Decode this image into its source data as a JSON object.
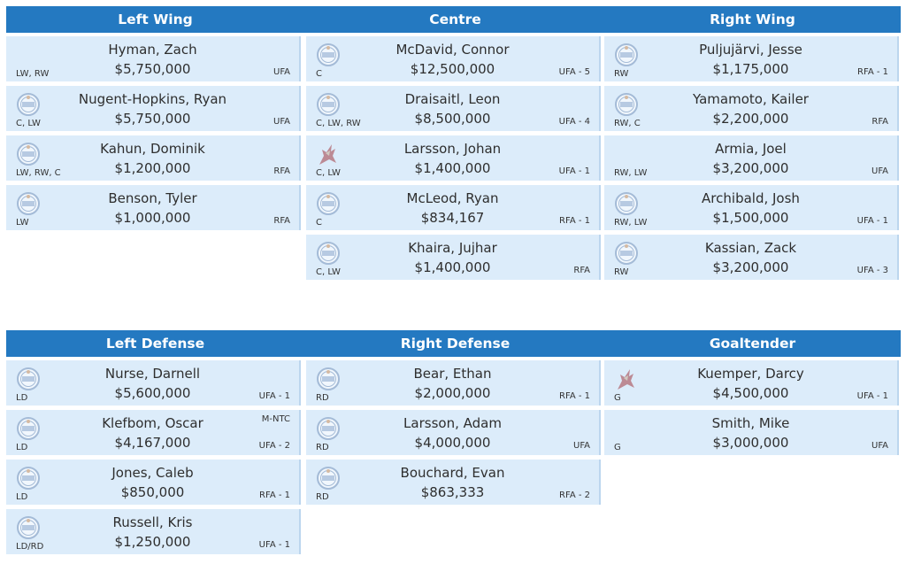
{
  "forwards": {
    "headers": [
      "Left Wing",
      "Centre",
      "Right Wing"
    ],
    "columns": [
      [
        {
          "name": "Hyman, Zach",
          "salary": "$5,750,000",
          "pos": "LW, RW",
          "status": "UFA",
          "logo": ""
        },
        {
          "name": "Nugent-Hopkins, Ryan",
          "salary": "$5,750,000",
          "pos": "C, LW",
          "status": "UFA",
          "logo": "oilers-logo-icon"
        },
        {
          "name": "Kahun, Dominik",
          "salary": "$1,200,000",
          "pos": "LW, RW, C",
          "status": "RFA",
          "logo": "oilers-logo-icon"
        },
        {
          "name": "Benson, Tyler",
          "salary": "$1,000,000",
          "pos": "LW",
          "status": "RFA",
          "logo": "oilers-logo-icon"
        }
      ],
      [
        {
          "name": "McDavid, Connor",
          "salary": "$12,500,000",
          "pos": "C",
          "status": "UFA - 5",
          "logo": "oilers-logo-icon"
        },
        {
          "name": "Draisaitl, Leon",
          "salary": "$8,500,000",
          "pos": "C, LW, RW",
          "status": "UFA - 4",
          "logo": "oilers-logo-icon"
        },
        {
          "name": "Larsson, Johan",
          "salary": "$1,400,000",
          "pos": "C, LW",
          "status": "UFA - 1",
          "logo": "coyotes-logo-icon"
        },
        {
          "name": "McLeod, Ryan",
          "salary": "$834,167",
          "pos": "C",
          "status": "RFA - 1",
          "logo": "oilers-logo-icon"
        },
        {
          "name": "Khaira, Jujhar",
          "salary": "$1,400,000",
          "pos": "C, LW",
          "status": "RFA",
          "logo": "oilers-logo-icon"
        }
      ],
      [
        {
          "name": "Puljujärvi, Jesse",
          "salary": "$1,175,000",
          "pos": "RW",
          "status": "RFA - 1",
          "logo": "oilers-logo-icon"
        },
        {
          "name": "Yamamoto, Kailer",
          "salary": "$2,200,000",
          "pos": "RW, C",
          "status": "RFA",
          "logo": "oilers-logo-icon"
        },
        {
          "name": "Armia, Joel",
          "salary": "$3,200,000",
          "pos": "RW, LW",
          "status": "UFA",
          "logo": ""
        },
        {
          "name": "Archibald, Josh",
          "salary": "$1,500,000",
          "pos": "RW, LW",
          "status": "UFA - 1",
          "logo": "oilers-logo-icon"
        },
        {
          "name": "Kassian, Zack",
          "salary": "$3,200,000",
          "pos": "RW",
          "status": "UFA - 3",
          "logo": "oilers-logo-icon"
        }
      ]
    ]
  },
  "defense": {
    "headers": [
      "Left Defense",
      "Right Defense",
      "Goaltender"
    ],
    "columns": [
      [
        {
          "name": "Nurse, Darnell",
          "salary": "$5,600,000",
          "pos": "LD",
          "status": "UFA - 1",
          "logo": "oilers-logo-icon"
        },
        {
          "name": "Klefbom, Oscar",
          "salary": "$4,167,000",
          "pos": "LD",
          "status": "UFA - 2",
          "note": "M-NTC",
          "logo": "oilers-logo-icon"
        },
        {
          "name": "Jones, Caleb",
          "salary": "$850,000",
          "pos": "LD",
          "status": "RFA - 1",
          "logo": "oilers-logo-icon"
        },
        {
          "name": "Russell, Kris",
          "salary": "$1,250,000",
          "pos": "LD/RD",
          "status": "UFA - 1",
          "logo": "oilers-logo-icon"
        }
      ],
      [
        {
          "name": "Bear, Ethan",
          "salary": "$2,000,000",
          "pos": "RD",
          "status": "RFA - 1",
          "logo": "oilers-logo-icon"
        },
        {
          "name": "Larsson, Adam",
          "salary": "$4,000,000",
          "pos": "RD",
          "status": "UFA",
          "logo": "oilers-logo-icon"
        },
        {
          "name": "Bouchard, Evan",
          "salary": "$863,333",
          "pos": "RD",
          "status": "RFA - 2",
          "logo": "oilers-logo-icon"
        }
      ],
      [
        {
          "name": "Kuemper, Darcy",
          "salary": "$4,500,000",
          "pos": "G",
          "status": "UFA - 1",
          "logo": "coyotes-logo-icon"
        },
        {
          "name": "Smith, Mike",
          "salary": "$3,000,000",
          "pos": "G",
          "status": "UFA",
          "logo": ""
        }
      ]
    ]
  },
  "colors": {
    "header_bg": "#2479c1",
    "card_bg": "#dcecfa",
    "card_border": "#bcd6ee",
    "oilers_logo": "#7f9bc0",
    "coyotes_logo": "#8c2633"
  }
}
